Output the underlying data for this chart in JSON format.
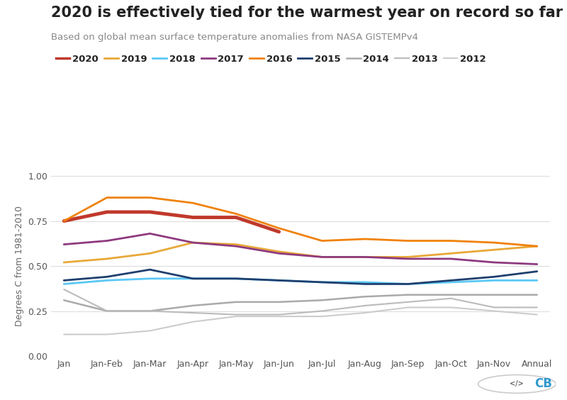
{
  "title": "2020 is effectively tied for the warmest year on record so far",
  "subtitle": "Based on global mean surface temperature anomalies from NASA GISTEMPv4",
  "ylabel": "Degrees C from 1981-2010",
  "x_labels": [
    "Jan",
    "Jan-Feb",
    "Jan-Mar",
    "Jan-Apr",
    "Jan-May",
    "Jan-Jun",
    "Jan-Jul",
    "Jan-Aug",
    "Jan-Sep",
    "Jan-Oct",
    "Jan-Nov",
    "Annual"
  ],
  "ylim": [
    0.0,
    1.0
  ],
  "yticks": [
    0.0,
    0.25,
    0.5,
    0.75,
    1.0
  ],
  "series": [
    {
      "label": "2020",
      "color": "#c0392b",
      "linewidth": 3.5,
      "data": [
        0.75,
        0.8,
        0.8,
        0.77,
        0.77,
        0.69,
        null,
        null,
        null,
        null,
        null,
        null
      ]
    },
    {
      "label": "2019",
      "color": "#e8a838",
      "linewidth": 2.0,
      "data": [
        0.52,
        0.54,
        0.57,
        0.63,
        0.62,
        0.58,
        0.55,
        0.55,
        0.55,
        0.57,
        0.59,
        0.61
      ]
    },
    {
      "label": "2018",
      "color": "#5bc8f5",
      "linewidth": 2.0,
      "data": [
        0.4,
        0.42,
        0.43,
        0.43,
        0.43,
        0.42,
        0.41,
        0.41,
        0.4,
        0.41,
        0.42,
        0.42
      ]
    },
    {
      "label": "2017",
      "color": "#8e3a7f",
      "linewidth": 2.0,
      "data": [
        0.62,
        0.64,
        0.68,
        0.63,
        0.61,
        0.57,
        0.55,
        0.55,
        0.54,
        0.54,
        0.52,
        0.51
      ]
    },
    {
      "label": "2016",
      "color": "#f0820c",
      "linewidth": 2.0,
      "data": [
        0.75,
        0.88,
        0.88,
        0.85,
        0.79,
        0.71,
        0.64,
        0.65,
        0.64,
        0.64,
        0.63,
        0.61
      ]
    },
    {
      "label": "2015",
      "color": "#1f3f6e",
      "linewidth": 2.0,
      "data": [
        0.42,
        0.44,
        0.48,
        0.43,
        0.43,
        0.42,
        0.41,
        0.4,
        0.4,
        0.42,
        0.44,
        0.47
      ]
    },
    {
      "label": "2014",
      "color": "#aaaaaa",
      "linewidth": 1.8,
      "data": [
        0.31,
        0.25,
        0.25,
        0.28,
        0.3,
        0.3,
        0.31,
        0.33,
        0.34,
        0.34,
        0.34,
        0.34
      ]
    },
    {
      "label": "2013",
      "color": "#bbbbbb",
      "linewidth": 1.5,
      "data": [
        0.37,
        0.25,
        0.25,
        0.24,
        0.23,
        0.23,
        0.25,
        0.28,
        0.3,
        0.32,
        0.27,
        0.27
      ]
    },
    {
      "label": "2012",
      "color": "#cccccc",
      "linewidth": 1.5,
      "data": [
        0.12,
        0.12,
        0.14,
        0.19,
        0.22,
        0.22,
        0.22,
        0.24,
        0.27,
        0.27,
        0.25,
        0.23
      ]
    }
  ],
  "background_color": "#ffffff",
  "grid_color": "#dddddd",
  "title_color": "#222222",
  "subtitle_color": "#888888",
  "title_fontsize": 15,
  "subtitle_fontsize": 9.5,
  "axis_label_fontsize": 9,
  "tick_fontsize": 9,
  "legend_fontsize": 9.5
}
